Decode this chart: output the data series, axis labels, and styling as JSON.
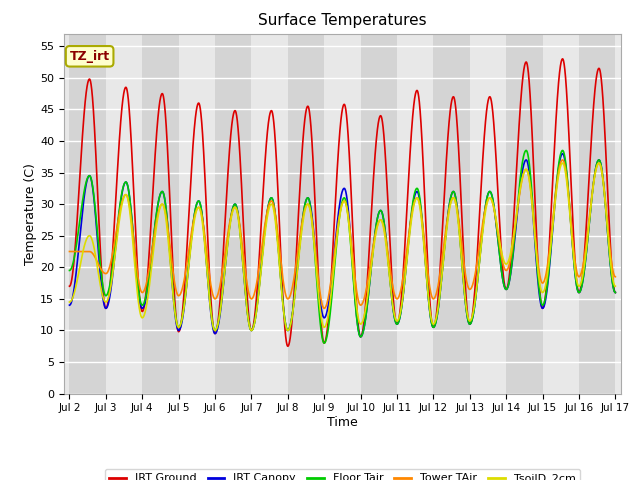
{
  "title": "Surface Temperatures",
  "xlabel": "Time",
  "ylabel": "Temperature (C)",
  "ylim": [
    0,
    57
  ],
  "yticks": [
    0,
    5,
    10,
    15,
    20,
    25,
    30,
    35,
    40,
    45,
    50,
    55
  ],
  "legend_label": "TZ_irt",
  "series": {
    "IRT Ground": {
      "color": "#dd0000",
      "lw": 1.2,
      "peaks": [
        49.8,
        48.5,
        47.5,
        46.0,
        44.8,
        44.8,
        45.5,
        45.8,
        44.0,
        48.0,
        47.0,
        47.0,
        52.5,
        53.0,
        51.5
      ],
      "troughs_before": [
        17.0,
        13.5,
        13.0,
        9.8,
        9.5,
        10.0,
        7.5,
        8.0,
        9.0,
        11.0,
        10.5,
        11.0,
        16.5,
        13.5,
        16.0
      ],
      "last_trough": 16.0
    },
    "IRT Canopy": {
      "color": "#0000dd",
      "lw": 1.2,
      "peaks": [
        34.5,
        33.5,
        32.0,
        30.5,
        30.0,
        31.0,
        31.0,
        32.5,
        29.0,
        32.0,
        32.0,
        32.0,
        37.0,
        38.0,
        37.0
      ],
      "troughs_before": [
        14.0,
        13.5,
        13.5,
        10.0,
        9.5,
        10.0,
        10.0,
        12.0,
        9.0,
        11.0,
        10.5,
        11.0,
        16.5,
        13.5,
        16.0
      ],
      "last_trough": 16.0
    },
    "Floor Tair": {
      "color": "#00cc00",
      "lw": 1.2,
      "peaks": [
        34.5,
        33.5,
        32.0,
        30.5,
        30.0,
        31.0,
        31.0,
        31.0,
        29.0,
        32.5,
        32.0,
        32.0,
        38.5,
        38.5,
        37.0
      ],
      "troughs_before": [
        19.5,
        15.5,
        14.0,
        10.5,
        10.0,
        10.0,
        10.0,
        8.0,
        9.0,
        11.0,
        10.5,
        11.0,
        16.5,
        14.0,
        16.0
      ],
      "last_trough": 16.0
    },
    "Tower TAir": {
      "color": "#ff8800",
      "lw": 1.2,
      "peaks": [
        22.5,
        31.5,
        30.0,
        29.5,
        29.5,
        30.5,
        30.0,
        30.5,
        27.5,
        31.0,
        31.0,
        31.0,
        35.5,
        37.0,
        36.5
      ],
      "troughs_before": [
        22.5,
        19.0,
        16.0,
        15.5,
        15.0,
        15.0,
        15.0,
        13.5,
        14.0,
        15.0,
        15.0,
        16.5,
        19.5,
        17.5,
        18.5
      ],
      "last_trough": 18.5
    },
    "TsoilD_2cm": {
      "color": "#dddd00",
      "lw": 1.2,
      "peaks": [
        25.0,
        31.5,
        30.0,
        29.5,
        29.5,
        30.0,
        30.0,
        30.5,
        27.5,
        31.0,
        31.0,
        31.0,
        35.5,
        36.5,
        36.5
      ],
      "troughs_before": [
        14.5,
        14.5,
        12.0,
        10.5,
        10.0,
        10.0,
        10.0,
        10.5,
        11.0,
        11.5,
        11.0,
        11.5,
        20.5,
        16.0,
        17.0
      ],
      "last_trough": 17.0
    }
  },
  "x_dates": [
    "Jul 2",
    "Jul 3",
    "Jul 4",
    "Jul 5",
    "Jul 6",
    "Jul 7",
    "Jul 8",
    "Jul 9",
    "Jul 10",
    "Jul 11",
    "Jul 12",
    "Jul 13",
    "Jul 14",
    "Jul 15",
    "Jul 16",
    "Jul 17"
  ]
}
